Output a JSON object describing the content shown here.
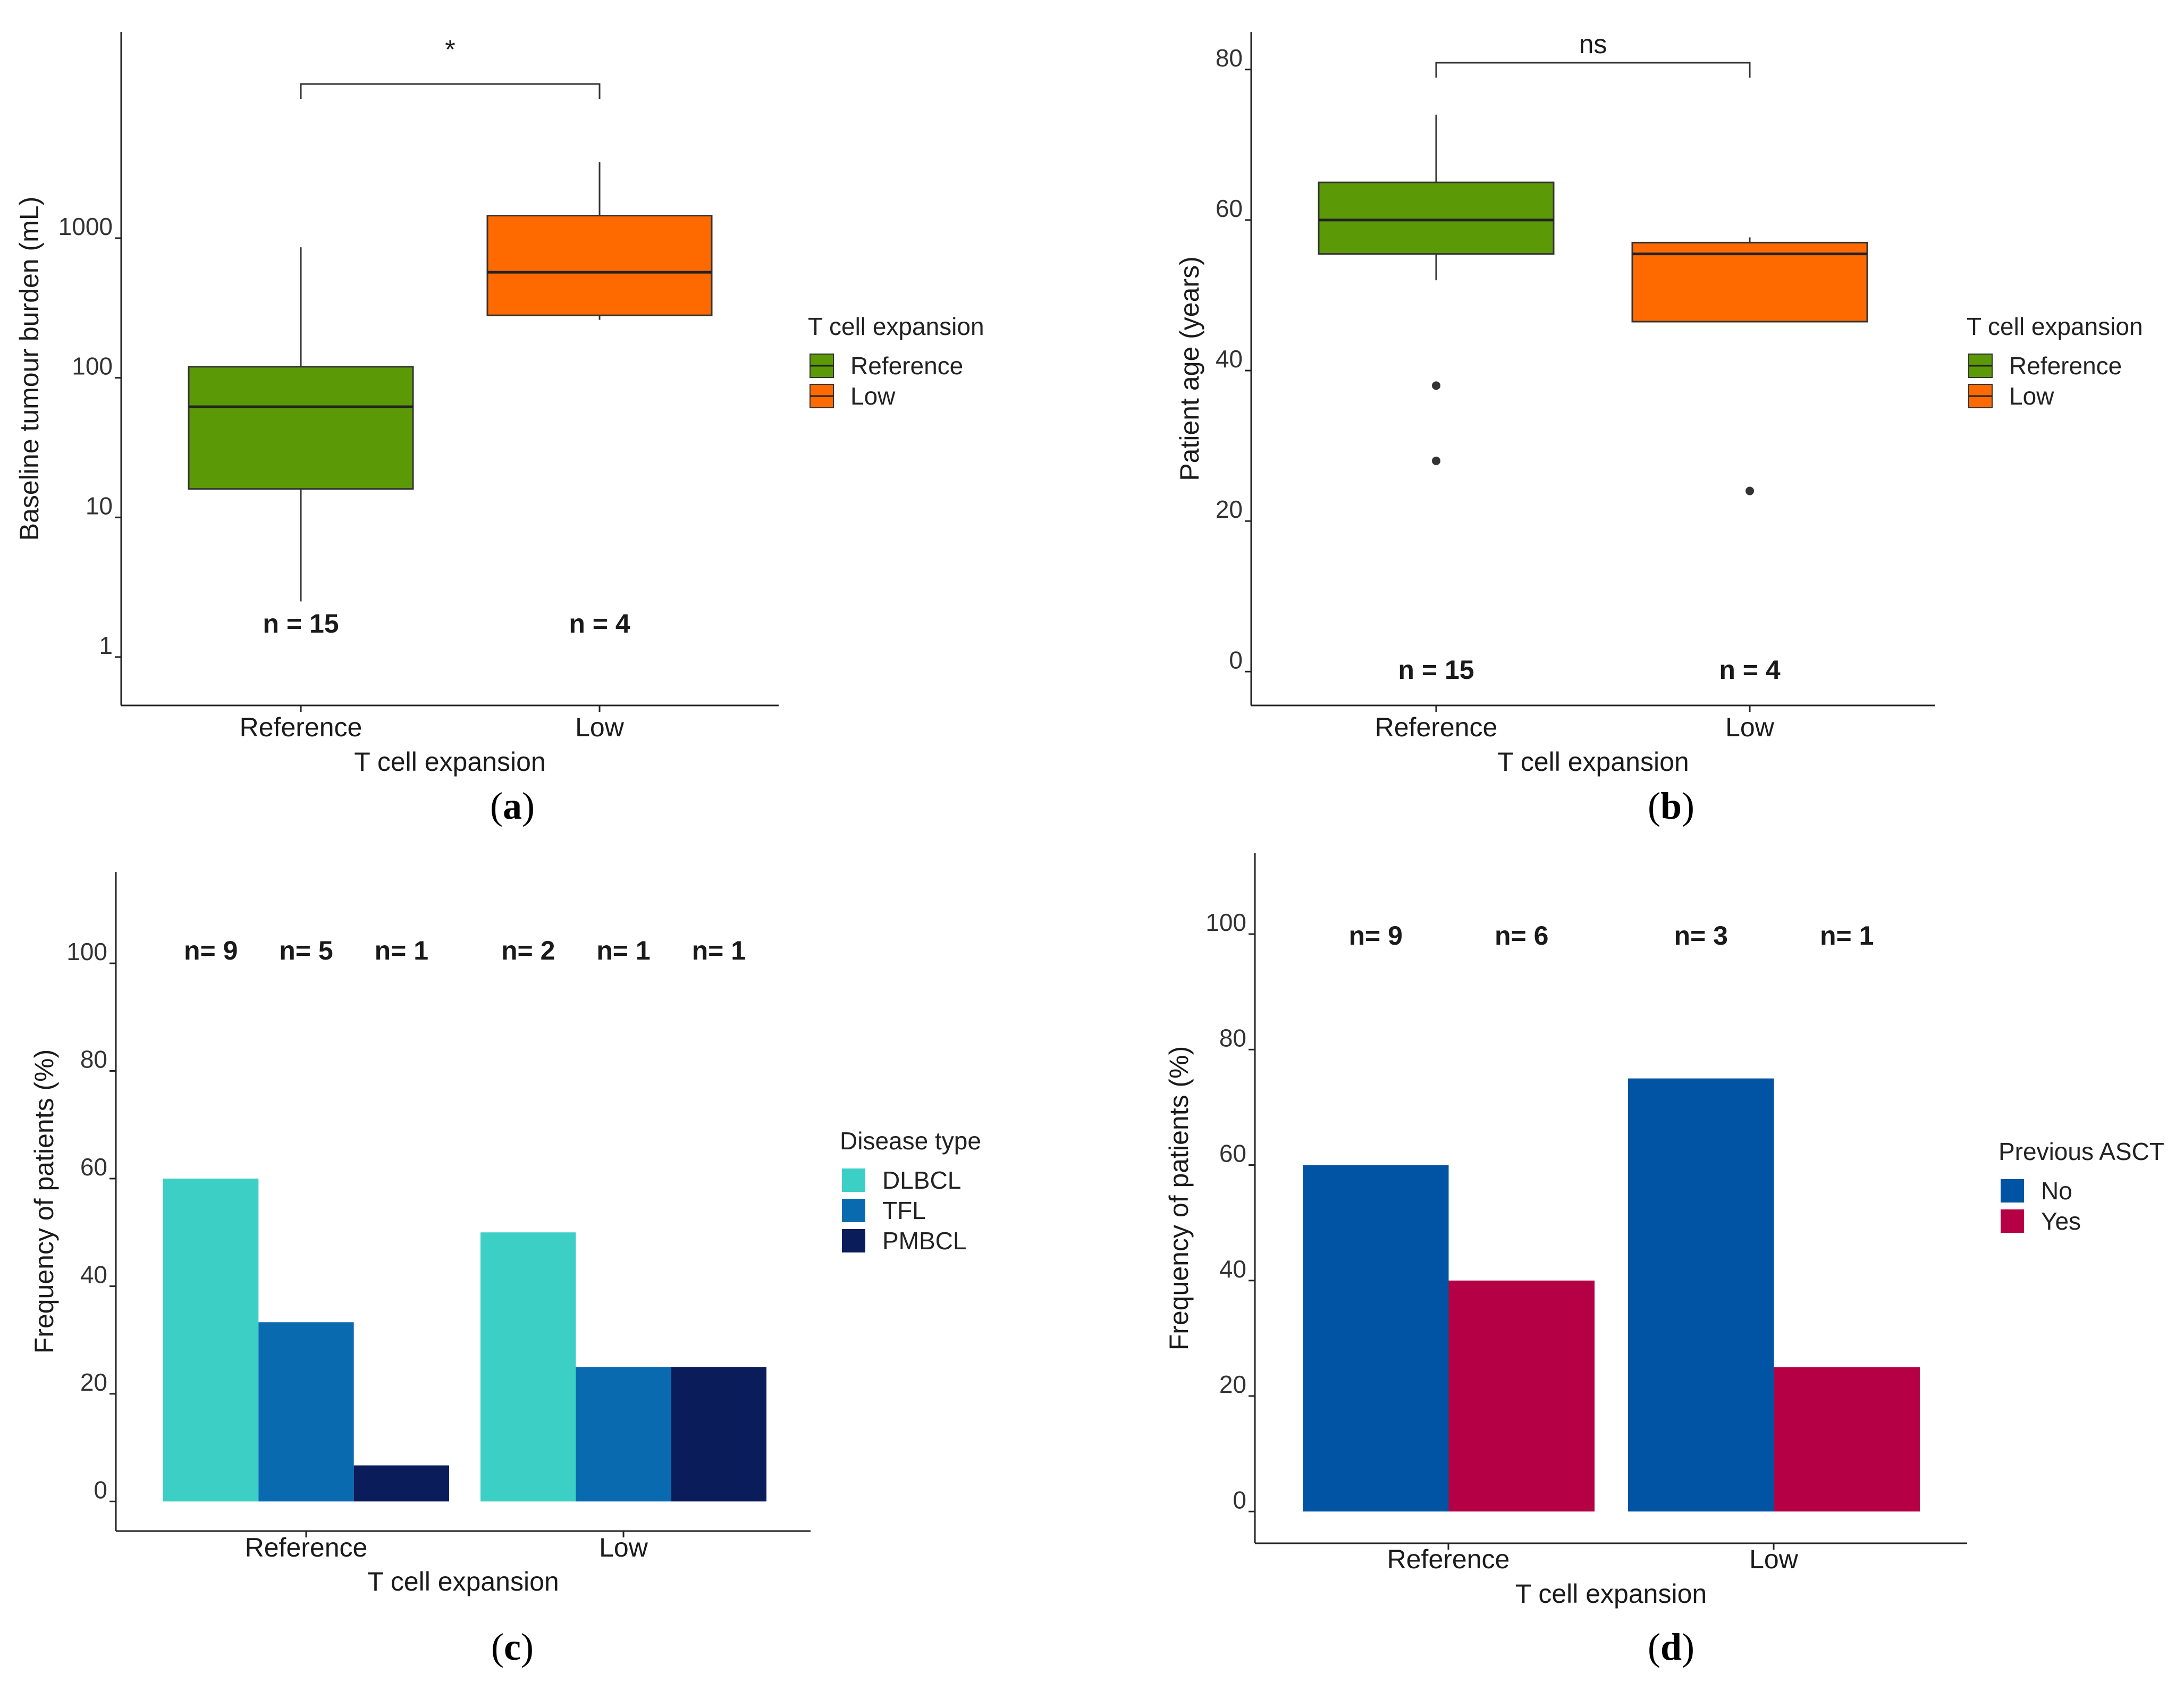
{
  "panels": [
    {
      "id": "a",
      "label": "a",
      "chart_data": {
        "type": "box",
        "title": "",
        "xlabel": "T cell expansion",
        "ylabel": "Baseline tumour burden (mL)",
        "yscale": "log10",
        "ylim": [
          0.45,
          30000
        ],
        "yticks": [
          1,
          10,
          100,
          1000
        ],
        "ytick_labels": [
          "1",
          "10",
          "100",
          "1000"
        ],
        "categories": [
          "Reference",
          "Low"
        ],
        "boxes": [
          {
            "category": "Reference",
            "whisker_low": 2.5,
            "q1": 16,
            "median": 62,
            "q3": 120,
            "whisker_high": 860,
            "outliers": [],
            "color": "#5b9a06",
            "n_label": "n = 15"
          },
          {
            "category": "Low",
            "whisker_low": 260,
            "q1": 280,
            "median": 570,
            "q3": 1450,
            "whisker_high": 3500,
            "outliers": [],
            "color": "#ff6a00",
            "n_label": "n = 4"
          }
        ],
        "significance": {
          "label": "*",
          "between": [
            "Reference",
            "Low"
          ]
        },
        "legend": {
          "title": "T cell expansion",
          "entries": [
            {
              "label": "Reference",
              "color": "#5b9a06"
            },
            {
              "label": "Low",
              "color": "#ff6a00"
            }
          ],
          "position": "right"
        }
      }
    },
    {
      "id": "b",
      "label": "b",
      "chart_data": {
        "type": "box",
        "title": "",
        "xlabel": "T cell expansion",
        "ylabel": "Patient age (years)",
        "yscale": "linear",
        "ylim": [
          -4.5,
          85
        ],
        "yticks": [
          0,
          20,
          40,
          60,
          80
        ],
        "ytick_labels": [
          "0",
          "20",
          "40",
          "60",
          "80"
        ],
        "categories": [
          "Reference",
          "Low"
        ],
        "boxes": [
          {
            "category": "Reference",
            "whisker_low": 52,
            "q1": 55.5,
            "median": 60,
            "q3": 65,
            "whisker_high": 74,
            "outliers": [
              38,
              28
            ],
            "color": "#5b9a06",
            "n_label": "n = 15"
          },
          {
            "category": "Low",
            "whisker_low": 46.5,
            "q1": 46.5,
            "median": 55.5,
            "q3": 57,
            "whisker_high": 57.7,
            "outliers": [
              24
            ],
            "color": "#ff6a00",
            "n_label": "n = 4"
          }
        ],
        "significance": {
          "label": "ns",
          "between": [
            "Reference",
            "Low"
          ]
        },
        "legend": {
          "title": "T cell expansion",
          "entries": [
            {
              "label": "Reference",
              "color": "#5b9a06"
            },
            {
              "label": "Low",
              "color": "#ff6a00"
            }
          ],
          "position": "right"
        }
      }
    },
    {
      "id": "c",
      "label": "c",
      "chart_data": {
        "type": "bar",
        "title": "",
        "xlabel": "T cell expansion",
        "ylabel": "Frequency of patients (%)",
        "ylim": [
          -5.5,
          117
        ],
        "yticks": [
          0,
          20,
          40,
          60,
          80,
          100
        ],
        "ytick_labels": [
          "0",
          "20",
          "40",
          "60",
          "80",
          "100"
        ],
        "categories": [
          "Reference",
          "Low"
        ],
        "series": [
          {
            "name": "DLBCL",
            "color": "#3ccfc6",
            "values": [
              60,
              50
            ],
            "n_labels": [
              "n= 9",
              "n= 2"
            ]
          },
          {
            "name": "TFL",
            "color": "#0a6ab0",
            "values": [
              33.3,
              25
            ],
            "n_labels": [
              "n= 5",
              "n= 1"
            ]
          },
          {
            "name": "PMBCL",
            "color": "#0a1c5a",
            "values": [
              6.7,
              25
            ],
            "n_labels": [
              "n= 1",
              "n= 1"
            ]
          }
        ],
        "legend": {
          "title": "Disease type",
          "entries": [
            {
              "label": "DLBCL",
              "color": "#3ccfc6"
            },
            {
              "label": "TFL",
              "color": "#0a6ab0"
            },
            {
              "label": "PMBCL",
              "color": "#0a1c5a"
            }
          ],
          "position": "right"
        }
      }
    },
    {
      "id": "d",
      "label": "d",
      "chart_data": {
        "type": "bar",
        "title": "",
        "xlabel": "T cell expansion",
        "ylabel": "Frequency of patients (%)",
        "ylim": [
          -5.5,
          114
        ],
        "yticks": [
          0,
          20,
          40,
          60,
          80,
          100
        ],
        "ytick_labels": [
          "0",
          "20",
          "40",
          "60",
          "80",
          "100"
        ],
        "categories": [
          "Reference",
          "Low"
        ],
        "series": [
          {
            "name": "No",
            "color": "#0054a3",
            "values": [
              60,
              75
            ],
            "n_labels": [
              "n= 9",
              "n= 3"
            ]
          },
          {
            "name": "Yes",
            "color": "#b60045",
            "values": [
              40,
              25
            ],
            "n_labels": [
              "n= 6",
              "n= 1"
            ]
          }
        ],
        "legend": {
          "title": "Previous ASCT",
          "entries": [
            {
              "label": "No",
              "color": "#0054a3"
            },
            {
              "label": "Yes",
              "color": "#b60045"
            }
          ],
          "position": "right"
        }
      }
    }
  ]
}
